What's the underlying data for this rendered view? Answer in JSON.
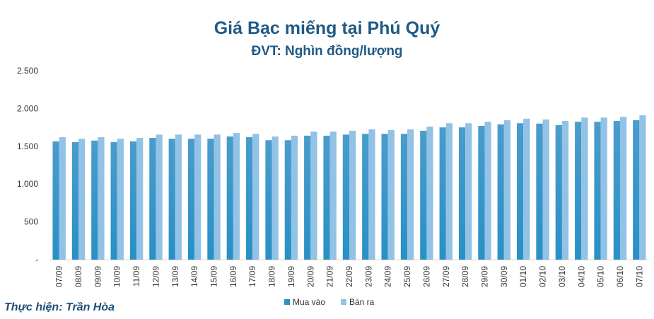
{
  "chart_data": {
    "type": "bar",
    "title": "Giá Bạc miếng tại Phú Quý",
    "subtitle": "ĐVT: Nghìn đồng/lượng",
    "ylim": [
      0,
      2500
    ],
    "yticks": [
      0,
      500,
      1000,
      1500,
      2000,
      2500
    ],
    "ytick_labels": [
      "-",
      "500",
      "1.000",
      "1.500",
      "2.000",
      "2.500"
    ],
    "grid": false,
    "legend_position": "bottom",
    "categories": [
      "07/09",
      "08/09",
      "09/09",
      "10/09",
      "11/09",
      "12/09",
      "13/09",
      "14/09",
      "15/09",
      "16/09",
      "17/09",
      "18/09",
      "19/09",
      "20/09",
      "21/09",
      "22/09",
      "23/09",
      "24/09",
      "25/09",
      "26/09",
      "27/09",
      "28/09",
      "29/09",
      "30/09",
      "01/10",
      "02/10",
      "03/10",
      "04/10",
      "05/10",
      "06/10",
      "07/10"
    ],
    "series": [
      {
        "name": "Mua vào",
        "color": "#2e8fc4",
        "values": [
          1565,
          1555,
          1575,
          1555,
          1565,
          1610,
          1600,
          1600,
          1600,
          1630,
          1620,
          1580,
          1580,
          1640,
          1640,
          1655,
          1665,
          1665,
          1665,
          1705,
          1750,
          1750,
          1770,
          1790,
          1805,
          1800,
          1780,
          1825,
          1825,
          1835,
          1845
        ]
      },
      {
        "name": "Bán ra",
        "color": "#92c2e5",
        "values": [
          1620,
          1600,
          1620,
          1600,
          1610,
          1655,
          1655,
          1655,
          1655,
          1675,
          1665,
          1630,
          1640,
          1695,
          1695,
          1705,
          1725,
          1715,
          1725,
          1760,
          1805,
          1805,
          1825,
          1845,
          1865,
          1855,
          1835,
          1880,
          1880,
          1890,
          1910
        ]
      }
    ]
  },
  "credit": "Thực hiện: Trần Hòa"
}
